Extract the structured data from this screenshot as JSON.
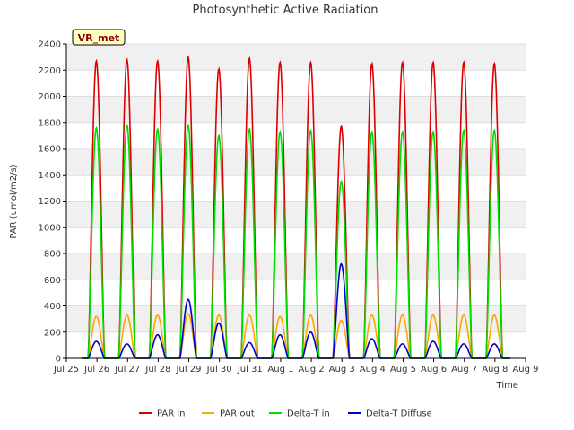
{
  "chart_data": {
    "type": "line",
    "title": "Photosynthetic Active Radiation",
    "xlabel": "Time",
    "ylabel": "PAR (umol/m2/s)",
    "site_label": "VR_met",
    "ylim": [
      0,
      2400
    ],
    "yticks": [
      0,
      200,
      400,
      600,
      800,
      1000,
      1200,
      1400,
      1600,
      1800,
      2000,
      2200,
      2400
    ],
    "xticks": [
      "Jul 25",
      "Jul 26",
      "Jul 27",
      "Jul 28",
      "Jul 29",
      "Jul 30",
      "Jul 31",
      "Aug 1",
      "Aug 2",
      "Aug 3",
      "Aug 4",
      "Aug 5",
      "Aug 6",
      "Aug 7",
      "Aug 8",
      "Aug 9"
    ],
    "x_start_date": "Jul 25",
    "grid": true,
    "background_bands": true,
    "legend_position": "bottom",
    "series": [
      {
        "name": "PAR in",
        "color": "#dd0000",
        "daily_peaks": [
          2270,
          2280,
          2270,
          2300,
          2210,
          2290,
          2260,
          2260,
          1770,
          2250,
          2260,
          2260,
          2260,
          2250
        ]
      },
      {
        "name": "PAR out",
        "color": "#ffa500",
        "daily_peaks": [
          320,
          330,
          330,
          340,
          330,
          330,
          320,
          330,
          290,
          330,
          330,
          330,
          330,
          330
        ]
      },
      {
        "name": "Delta-T in",
        "color": "#00dd00",
        "daily_peaks": [
          1760,
          1780,
          1750,
          1780,
          1700,
          1750,
          1730,
          1740,
          1350,
          1730,
          1730,
          1730,
          1740,
          1740
        ]
      },
      {
        "name": "Delta-T Diffuse",
        "color": "#0000cc",
        "daily_peaks": [
          130,
          110,
          180,
          450,
          270,
          120,
          180,
          200,
          720,
          150,
          110,
          130,
          110,
          110
        ]
      }
    ]
  }
}
